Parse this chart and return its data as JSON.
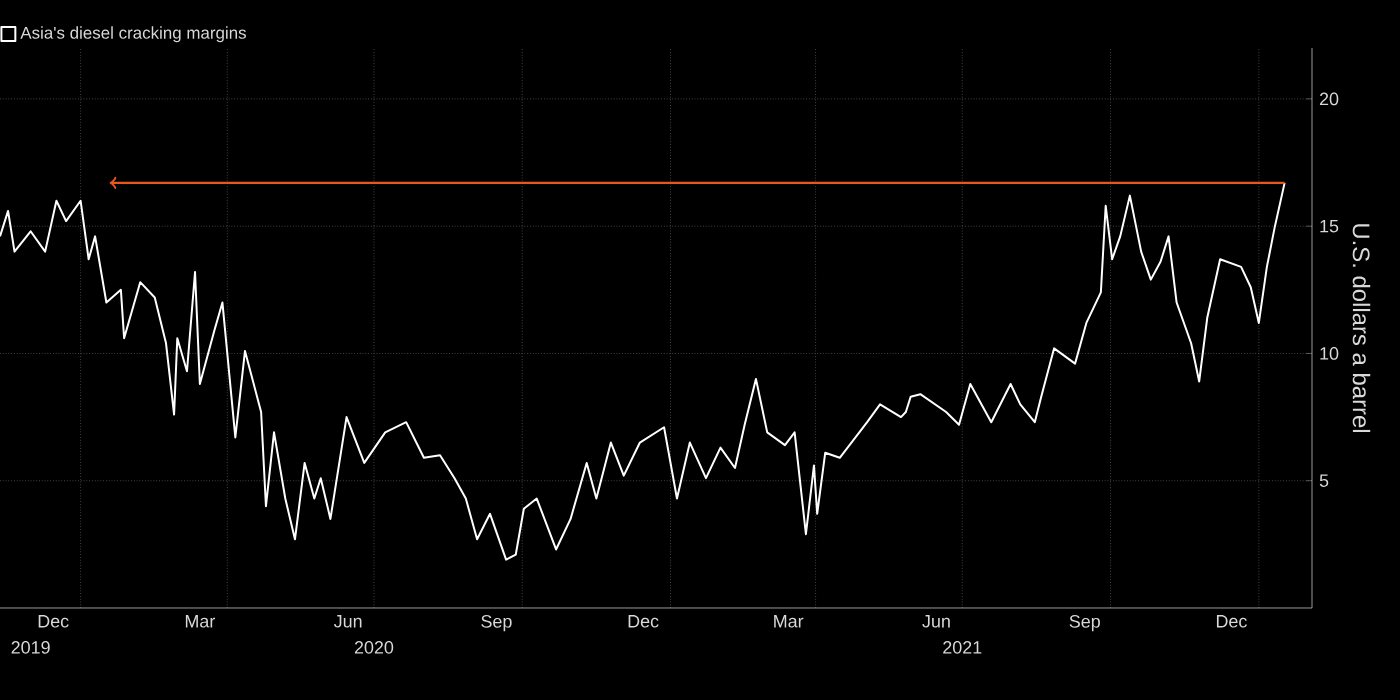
{
  "chart_data": {
    "type": "line",
    "ylabel": "U.S. dollars a barrel",
    "xlim": [
      "2019-11-12",
      "2022-02-03"
    ],
    "ylim": [
      0,
      22
    ],
    "yticks": [
      5,
      10,
      15,
      20
    ],
    "grid": true,
    "legend": "top left",
    "xticks": [
      {
        "value": "2020-01-01",
        "label": null
      },
      {
        "value": "2020-04-01",
        "label": null
      },
      {
        "value": "2020-07-01",
        "label": null
      },
      {
        "value": "2020-10-01",
        "label": null
      },
      {
        "value": "2021-01-01",
        "label": null
      },
      {
        "value": "2021-04-01",
        "label": null
      },
      {
        "value": "2021-07-01",
        "label": null
      },
      {
        "value": "2021-10-01",
        "label": null
      },
      {
        "value": "2022-01-01",
        "label": null
      },
      {
        "value": "2019-12-15",
        "label": "Dec"
      },
      {
        "value": "2020-03-15",
        "label": "Mar"
      },
      {
        "value": "2020-06-15",
        "label": "Jun"
      },
      {
        "value": "2020-09-15",
        "label": "Sep"
      },
      {
        "value": "2020-12-15",
        "label": "Dec"
      },
      {
        "value": "2021-03-15",
        "label": "Mar"
      },
      {
        "value": "2021-06-15",
        "label": "Jun"
      },
      {
        "value": "2021-09-15",
        "label": "Sep"
      },
      {
        "value": "2021-12-15",
        "label": "Dec"
      }
    ],
    "x2lim": [
      "2019-11-12",
      "2022-02-03"
    ],
    "x2ticks": [
      {
        "value": "2019-12-01",
        "label": "2019"
      },
      {
        "value": "2020-07-01",
        "label": "2020"
      },
      {
        "value": "2021-07-01",
        "label": "2021"
      }
    ],
    "series": [
      {
        "name": "Asia's diesel cracking margins",
        "color": "#ffffff",
        "x": [
          "2019-11-12",
          "2019-11-17",
          "2019-11-21",
          "2019-12-01",
          "2019-12-10",
          "2019-12-17",
          "2019-12-23",
          "2020-01-01",
          "2020-01-06",
          "2020-01-10",
          "2020-01-17",
          "2020-01-26",
          "2020-01-28",
          "2020-02-07",
          "2020-02-16",
          "2020-02-23",
          "2020-02-28",
          "2020-03-01",
          "2020-03-07",
          "2020-03-12",
          "2020-03-15",
          "2020-03-24",
          "2020-03-29",
          "2020-04-06",
          "2020-04-12",
          "2020-04-22",
          "2020-04-25",
          "2020-04-30",
          "2020-05-07",
          "2020-05-13",
          "2020-05-19",
          "2020-05-25",
          "2020-05-29",
          "2020-06-04",
          "2020-06-14",
          "2020-06-25",
          "2020-07-08",
          "2020-07-21",
          "2020-08-01",
          "2020-08-11",
          "2020-08-20",
          "2020-08-27",
          "2020-09-03",
          "2020-09-11",
          "2020-09-21",
          "2020-09-27",
          "2020-10-02",
          "2020-10-10",
          "2020-10-22",
          "2020-10-31",
          "2020-11-10",
          "2020-11-16",
          "2020-11-25",
          "2020-12-03",
          "2020-12-13",
          "2020-12-28",
          "2021-01-05",
          "2021-01-13",
          "2021-01-23",
          "2021-02-01",
          "2021-02-10",
          "2021-02-16",
          "2021-02-23",
          "2021-03-02",
          "2021-03-13",
          "2021-03-19",
          "2021-03-26",
          "2021-03-31",
          "2021-04-02",
          "2021-04-07",
          "2021-04-16",
          "2021-05-03",
          "2021-05-11",
          "2021-05-24",
          "2021-05-27",
          "2021-05-30",
          "2021-06-05",
          "2021-06-21",
          "2021-06-29",
          "2021-07-06",
          "2021-07-19",
          "2021-07-31",
          "2021-08-06",
          "2021-08-15",
          "2021-08-19",
          "2021-08-27",
          "2021-09-09",
          "2021-09-16",
          "2021-09-25",
          "2021-09-28",
          "2021-10-02",
          "2021-10-07",
          "2021-10-13",
          "2021-10-20",
          "2021-10-26",
          "2021-11-01",
          "2021-11-06",
          "2021-11-11",
          "2021-11-20",
          "2021-11-25",
          "2021-11-30",
          "2021-12-08",
          "2021-12-21",
          "2021-12-27",
          "2022-01-01",
          "2022-01-06",
          "2022-01-11",
          "2022-01-17"
        ],
        "values": [
          14.6,
          15.6,
          14.0,
          14.8,
          14.0,
          16.0,
          15.2,
          16.0,
          13.7,
          14.6,
          12.0,
          12.5,
          10.6,
          12.8,
          12.2,
          10.4,
          7.6,
          10.6,
          9.3,
          13.2,
          8.8,
          10.9,
          12.0,
          6.7,
          10.1,
          7.7,
          4.0,
          6.9,
          4.3,
          2.7,
          5.7,
          4.3,
          5.1,
          3.5,
          7.5,
          5.7,
          6.9,
          7.3,
          5.9,
          6.0,
          5.1,
          4.3,
          2.7,
          3.7,
          1.9,
          2.1,
          3.9,
          4.3,
          2.3,
          3.5,
          5.7,
          4.3,
          6.5,
          5.2,
          6.5,
          7.1,
          4.3,
          6.5,
          5.1,
          6.3,
          5.5,
          7.2,
          9.0,
          6.9,
          6.4,
          6.9,
          2.9,
          5.6,
          3.7,
          6.1,
          5.9,
          7.3,
          8.0,
          7.5,
          7.7,
          8.3,
          8.4,
          7.7,
          7.2,
          8.8,
          7.3,
          8.8,
          8.0,
          7.3,
          8.3,
          10.2,
          9.6,
          11.2,
          12.4,
          15.8,
          13.7,
          14.6,
          16.2,
          14.0,
          12.9,
          13.6,
          14.6,
          12.0,
          10.4,
          8.9,
          11.4,
          13.7,
          13.4,
          12.6,
          11.2,
          13.4,
          15.0,
          16.7
        ]
      },
      {
        "type": "line",
        "color": "#e8581c",
        "x": [
          "2020-01-19",
          "2022-01-17"
        ],
        "values": [
          16.7,
          16.7
        ]
      }
    ]
  }
}
